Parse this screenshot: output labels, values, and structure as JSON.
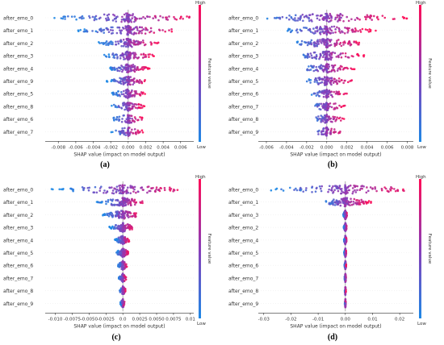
{
  "chart_data": [
    {
      "type": "scatter",
      "subtype": "shap-beeswarm-summary",
      "panel_label": "(a)",
      "xlabel": "SHAP value (impact on model output)",
      "ylabel": "",
      "xlim": [
        -0.0095,
        0.0075
      ],
      "xticks": [
        "-0.008",
        "-0.006",
        "-0.004",
        "-0.002",
        "0.000",
        "0.002",
        "0.004",
        "0.006"
      ],
      "xtick_values": [
        -0.008,
        -0.006,
        -0.004,
        -0.002,
        0.0,
        0.002,
        0.004,
        0.006
      ],
      "features": [
        "after_emo_0",
        "after_emo_1",
        "after_emo_2",
        "after_emo_3",
        "after_emo_4",
        "after_emo_9",
        "after_emo_5",
        "after_emo_8",
        "after_emo_6",
        "after_emo_7"
      ],
      "ranges": [
        [
          -0.0085,
          0.007
        ],
        [
          -0.0058,
          0.005
        ],
        [
          -0.0035,
          0.0035
        ],
        [
          -0.003,
          0.003
        ],
        [
          -0.0025,
          0.0025
        ],
        [
          -0.0025,
          0.0025
        ],
        [
          -0.002,
          0.002
        ],
        [
          -0.002,
          0.002
        ],
        [
          -0.002,
          0.002
        ],
        [
          -0.002,
          0.002
        ]
      ],
      "colorbar": {
        "label": "Feature value",
        "high": "High",
        "low": "Low"
      },
      "grid": false
    },
    {
      "type": "scatter",
      "subtype": "shap-beeswarm-summary",
      "panel_label": "(b)",
      "xlabel": "SHAP value (impact on model output)",
      "ylabel": "",
      "xlim": [
        -0.0068,
        0.0086
      ],
      "xticks": [
        "-0.006",
        "-0.004",
        "-0.002",
        "0.000",
        "0.002",
        "0.004",
        "0.006",
        "0.008"
      ],
      "xtick_values": [
        -0.006,
        -0.004,
        -0.002,
        0.0,
        0.002,
        0.004,
        0.006,
        0.008
      ],
      "features": [
        "after_emo_0",
        "after_emo_1",
        "after_emo_2",
        "after_emo_3",
        "after_emo_4",
        "after_emo_5",
        "after_emo_6",
        "after_emo_7",
        "after_emo_8",
        "after_emo_9"
      ],
      "ranges": [
        [
          -0.006,
          0.008
        ],
        [
          -0.004,
          0.005
        ],
        [
          -0.003,
          0.004
        ],
        [
          -0.0025,
          0.004
        ],
        [
          -0.002,
          0.003
        ],
        [
          -0.002,
          0.0025
        ],
        [
          -0.0015,
          0.002
        ],
        [
          -0.0015,
          0.002
        ],
        [
          -0.0012,
          0.0018
        ],
        [
          -0.0012,
          0.0018
        ]
      ],
      "colorbar": {
        "label": "Feature value",
        "high": "High",
        "low": "Low"
      },
      "grid": false
    },
    {
      "type": "scatter",
      "subtype": "shap-beeswarm-summary",
      "panel_label": "(c)",
      "xlabel": "SHAP value (impact on model output)",
      "ylabel": "",
      "xlim": [
        -0.0115,
        0.0105
      ],
      "xticks": [
        "-0.010",
        "-0.0075",
        "-0.0050",
        "-0.0025",
        "0.0",
        "0.0025",
        "0.0050",
        "0.0075",
        "0.01"
      ],
      "xtick_values": [
        -0.01,
        -0.0075,
        -0.005,
        -0.0025,
        0.0,
        0.0025,
        0.005,
        0.0075,
        0.01
      ],
      "features": [
        "after_emo_0",
        "after_emo_1",
        "after_emo_2",
        "after_emo_3",
        "after_emo_4",
        "after_emo_5",
        "after_emo_6",
        "after_emo_7",
        "after_emo_8",
        "after_emo_9"
      ],
      "ranges": [
        [
          -0.011,
          0.009
        ],
        [
          -0.004,
          0.003
        ],
        [
          -0.003,
          0.002
        ],
        [
          -0.002,
          0.0015
        ],
        [
          -0.0012,
          0.001
        ],
        [
          -0.001,
          0.0008
        ],
        [
          -0.0008,
          0.0006
        ],
        [
          -0.0006,
          0.0005
        ],
        [
          -0.0005,
          0.0004
        ],
        [
          -0.0004,
          0.0003
        ]
      ],
      "colorbar": {
        "label": "Feature value",
        "high": "High",
        "low": "Low"
      },
      "grid": false
    },
    {
      "type": "scatter",
      "subtype": "shap-beeswarm-summary",
      "panel_label": "(d)",
      "xlabel": "SHAP value (impact on model output)",
      "ylabel": "",
      "xlim": [
        -0.032,
        0.025
      ],
      "xticks": [
        "-0.03",
        "-0.02",
        "-0.01",
        "0.00",
        "0.01",
        "0.02"
      ],
      "xtick_values": [
        -0.03,
        -0.02,
        -0.01,
        0.0,
        0.01,
        0.02
      ],
      "features": [
        "after_emo_0",
        "after_emo_1",
        "after_emo_3",
        "after_emo_2",
        "after_emo_4",
        "after_emo_5",
        "after_emo_6",
        "after_emo_7",
        "after_emo_8",
        "after_emo_9"
      ],
      "ranges": [
        [
          -0.029,
          0.022
        ],
        [
          -0.008,
          0.01
        ],
        [
          -0.0008,
          0.0006
        ],
        [
          -0.0006,
          0.0005
        ],
        [
          -0.0005,
          0.0004
        ],
        [
          -0.0004,
          0.0003
        ],
        [
          -0.0003,
          0.0003
        ],
        [
          -0.0003,
          0.0002
        ],
        [
          -0.0002,
          0.0002
        ],
        [
          -0.0002,
          0.0002
        ]
      ],
      "colorbar": {
        "label": "Feature value",
        "high": "High",
        "low": "Low"
      },
      "grid": false
    }
  ],
  "colors": {
    "low": "#1E88E5",
    "high": "#FF0D57",
    "zero_line": "#999999",
    "axis": "#333333",
    "caption": "#000000"
  }
}
